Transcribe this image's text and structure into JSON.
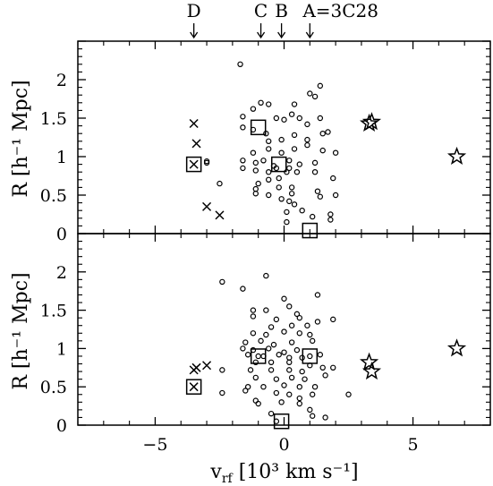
{
  "chart_data": [
    {
      "type": "scatter",
      "panel": "top",
      "xlim": [
        -8,
        8
      ],
      "ylim": [
        0,
        2.5
      ],
      "ylabel": "R [h⁻¹ Mpc]",
      "yticks": [
        "0",
        "0.5",
        "1",
        "1.5",
        "2"
      ],
      "series": [
        {
          "marker": "circle",
          "points": [
            [
              -1.7,
              2.2
            ],
            [
              -1.6,
              1.52
            ],
            [
              -1.2,
              1.62
            ],
            [
              -0.9,
              1.7
            ],
            [
              -0.6,
              1.68
            ],
            [
              0.4,
              1.68
            ],
            [
              1.2,
              1.78
            ],
            [
              1.0,
              1.82
            ],
            [
              1.4,
              1.92
            ],
            [
              -1.6,
              1.38
            ],
            [
              -1.2,
              1.35
            ],
            [
              -0.7,
              1.3
            ],
            [
              -0.3,
              1.5
            ],
            [
              0.0,
              1.48
            ],
            [
              0.3,
              1.55
            ],
            [
              0.6,
              1.5
            ],
            [
              0.9,
              1.42
            ],
            [
              1.4,
              1.5
            ],
            [
              1.7,
              1.32
            ],
            [
              -0.6,
              1.2
            ],
            [
              -0.1,
              1.22
            ],
            [
              0.4,
              1.28
            ],
            [
              0.9,
              1.22
            ],
            [
              1.5,
              1.3
            ],
            [
              -1.2,
              1.05
            ],
            [
              -0.6,
              1.1
            ],
            [
              -0.1,
              1.05
            ],
            [
              0.4,
              1.1
            ],
            [
              0.9,
              1.15
            ],
            [
              1.5,
              1.08
            ],
            [
              2.0,
              1.05
            ],
            [
              -3.0,
              0.92
            ],
            [
              -3.0,
              0.94
            ],
            [
              -1.6,
              0.95
            ],
            [
              -1.1,
              0.92
            ],
            [
              -0.8,
              0.95
            ],
            [
              -0.4,
              0.88
            ],
            [
              0.2,
              0.95
            ],
            [
              0.6,
              0.9
            ],
            [
              1.2,
              0.92
            ],
            [
              -1.6,
              0.85
            ],
            [
              -1.1,
              0.82
            ],
            [
              -0.6,
              0.8
            ],
            [
              0.1,
              0.8
            ],
            [
              0.5,
              0.8
            ],
            [
              1.2,
              0.8
            ],
            [
              -2.5,
              0.65
            ],
            [
              -1.0,
              0.65
            ],
            [
              -0.6,
              0.7
            ],
            [
              -0.2,
              0.72
            ],
            [
              0.3,
              0.6
            ],
            [
              -1.1,
              0.58
            ],
            [
              -0.2,
              0.6
            ],
            [
              0.3,
              0.52
            ],
            [
              1.3,
              0.55
            ],
            [
              1.9,
              0.72
            ],
            [
              -1.1,
              0.52
            ],
            [
              -0.6,
              0.5
            ],
            [
              -0.1,
              0.45
            ],
            [
              0.2,
              0.42
            ],
            [
              0.4,
              0.38
            ],
            [
              1.4,
              0.48
            ],
            [
              2.0,
              0.5
            ],
            [
              0.1,
              0.28
            ],
            [
              0.7,
              0.3
            ],
            [
              1.1,
              0.22
            ],
            [
              1.8,
              0.25
            ],
            [
              0.1,
              0.15
            ],
            [
              1.8,
              0.18
            ],
            [
              -0.3,
              0.85
            ],
            [
              0.2,
              0.85
            ]
          ]
        },
        {
          "marker": "square",
          "points": [
            [
              -1.0,
              1.38
            ],
            [
              -0.2,
              0.9
            ],
            [
              1.0,
              0.04
            ],
            [
              -3.5,
              0.9
            ]
          ]
        },
        {
          "marker": "cross",
          "points": [
            [
              -3.5,
              1.43
            ],
            [
              -3.4,
              1.17
            ],
            [
              -3.0,
              0.35
            ],
            [
              -2.5,
              0.24
            ],
            [
              -3.5,
              0.9
            ]
          ]
        },
        {
          "marker": "star",
          "points": [
            [
              3.3,
              1.43
            ],
            [
              3.4,
              1.45
            ],
            [
              6.7,
              1.0
            ]
          ]
        }
      ]
    },
    {
      "type": "scatter",
      "panel": "bottom",
      "xlim": [
        -8,
        8
      ],
      "ylim": [
        0,
        2.5
      ],
      "xlabel": "v_rf [10³ km s⁻¹]",
      "ylabel": "R [h⁻¹ Mpc]",
      "xticks": [
        "−5",
        "0",
        "5"
      ],
      "yticks": [
        "0",
        "0.5",
        "1",
        "1.5",
        "2"
      ],
      "series": [
        {
          "marker": "circle",
          "points": [
            [
              -2.4,
              1.87
            ],
            [
              -0.7,
              1.95
            ],
            [
              -1.6,
              1.78
            ],
            [
              0.0,
              1.65
            ],
            [
              0.2,
              1.55
            ],
            [
              1.3,
              1.7
            ],
            [
              -1.2,
              1.5
            ],
            [
              -0.7,
              1.5
            ],
            [
              0.5,
              1.45
            ],
            [
              -1.2,
              1.42
            ],
            [
              -0.3,
              1.38
            ],
            [
              0.6,
              1.4
            ],
            [
              1.3,
              1.35
            ],
            [
              -0.5,
              1.28
            ],
            [
              0.3,
              1.3
            ],
            [
              0.9,
              1.3
            ],
            [
              1.9,
              1.38
            ],
            [
              -1.2,
              1.2
            ],
            [
              -0.7,
              1.18
            ],
            [
              0.0,
              1.22
            ],
            [
              0.6,
              1.2
            ],
            [
              1.0,
              1.18
            ],
            [
              -1.5,
              1.08
            ],
            [
              -0.9,
              1.1
            ],
            [
              -0.4,
              1.05
            ],
            [
              0.3,
              1.08
            ],
            [
              1.1,
              1.1
            ],
            [
              -1.6,
              1.0
            ],
            [
              -1.2,
              0.98
            ],
            [
              -0.6,
              1.0
            ],
            [
              0.0,
              0.95
            ],
            [
              0.5,
              0.98
            ],
            [
              -1.4,
              0.92
            ],
            [
              -0.8,
              0.9
            ],
            [
              -0.2,
              0.92
            ],
            [
              0.2,
              0.88
            ],
            [
              0.7,
              0.88
            ],
            [
              1.4,
              0.92
            ],
            [
              -1.1,
              0.82
            ],
            [
              -0.5,
              0.82
            ],
            [
              0.2,
              0.82
            ],
            [
              1.0,
              0.78
            ],
            [
              -2.4,
              0.72
            ],
            [
              -1.3,
              0.72
            ],
            [
              -0.5,
              0.72
            ],
            [
              0.2,
              0.72
            ],
            [
              0.7,
              0.7
            ],
            [
              1.5,
              0.75
            ],
            [
              1.9,
              0.75
            ],
            [
              -1.1,
              0.62
            ],
            [
              -0.3,
              0.6
            ],
            [
              0.3,
              0.62
            ],
            [
              0.8,
              0.6
            ],
            [
              1.6,
              0.65
            ],
            [
              -1.4,
              0.5
            ],
            [
              -0.8,
              0.5
            ],
            [
              0.0,
              0.52
            ],
            [
              0.6,
              0.5
            ],
            [
              1.2,
              0.5
            ],
            [
              -2.4,
              0.42
            ],
            [
              -1.5,
              0.45
            ],
            [
              -0.3,
              0.42
            ],
            [
              0.2,
              0.4
            ],
            [
              0.6,
              0.35
            ],
            [
              1.1,
              0.4
            ],
            [
              2.5,
              0.4
            ],
            [
              -1.1,
              0.32
            ],
            [
              -0.1,
              0.3
            ],
            [
              0.6,
              0.28
            ],
            [
              -1.0,
              0.28
            ],
            [
              -0.5,
              0.15
            ],
            [
              1.0,
              0.2
            ],
            [
              1.6,
              0.1
            ],
            [
              -0.3,
              0.05
            ],
            [
              1.1,
              0.12
            ],
            [
              -1.0,
              0.9
            ],
            [
              1.0,
              0.9
            ]
          ]
        },
        {
          "marker": "square",
          "points": [
            [
              -1.0,
              0.9
            ],
            [
              1.0,
              0.9
            ],
            [
              -0.1,
              0.05
            ],
            [
              -3.5,
              0.5
            ]
          ]
        },
        {
          "marker": "cross",
          "points": [
            [
              -3.5,
              0.72
            ],
            [
              -3.4,
              0.75
            ],
            [
              -3.0,
              0.78
            ],
            [
              -3.5,
              0.5
            ]
          ]
        },
        {
          "marker": "star",
          "points": [
            [
              3.3,
              0.82
            ],
            [
              3.4,
              0.7
            ],
            [
              6.7,
              1.0
            ]
          ]
        }
      ]
    }
  ],
  "annotations": [
    {
      "label": "D",
      "x": -3.5
    },
    {
      "label": "C",
      "x": -0.9
    },
    {
      "label": "B",
      "x": -0.1
    },
    {
      "label": "A=3C28",
      "x": 1.0
    }
  ],
  "labels": {
    "ylabel_top": "R [h⁻¹ Mpc]",
    "ylabel_bottom": "R [h⁻¹ Mpc]",
    "xlabel": "v",
    "xlabel_sub": "rf",
    "xlabel_rest": " [10³ km s⁻¹]"
  }
}
